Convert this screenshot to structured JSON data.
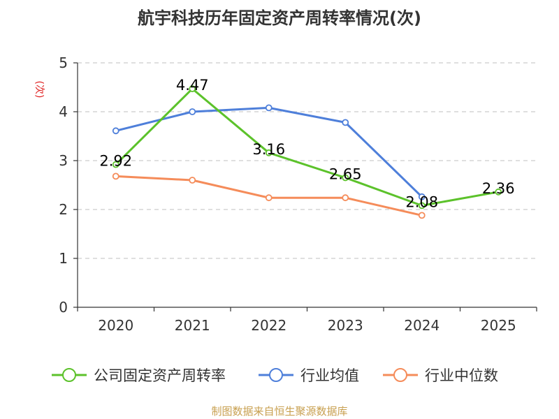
{
  "chart_data": {
    "type": "line",
    "title": "航宇科技历年固定资产周转率情况(次)",
    "ylabel": "(次)",
    "xlabel": "",
    "categories": [
      "2020",
      "2021",
      "2022",
      "2023",
      "2024",
      "2025"
    ],
    "yticks": [
      "0",
      "1",
      "2",
      "3",
      "4",
      "5"
    ],
    "ylim": [
      0,
      5
    ],
    "grid": true,
    "legend_position": "bottom",
    "series": [
      {
        "name": "公司固定资产周转率",
        "color": "#5cc22b",
        "values": [
          2.92,
          4.47,
          3.16,
          2.65,
          2.08,
          2.36
        ],
        "labels": [
          "2.92",
          "4.47",
          "3.16",
          "2.65",
          "2.08",
          "2.36"
        ]
      },
      {
        "name": "行业均值",
        "color": "#4e7fda",
        "values": [
          3.61,
          4.0,
          4.08,
          3.78,
          2.26,
          null
        ]
      },
      {
        "name": "行业中位数",
        "color": "#f58c5a",
        "values": [
          2.68,
          2.6,
          2.24,
          2.24,
          1.88,
          null
        ]
      }
    ],
    "source": "制图数据来自恒生聚源数据库",
    "ylabel_color": "#e02020",
    "source_color": "#c8a050"
  }
}
